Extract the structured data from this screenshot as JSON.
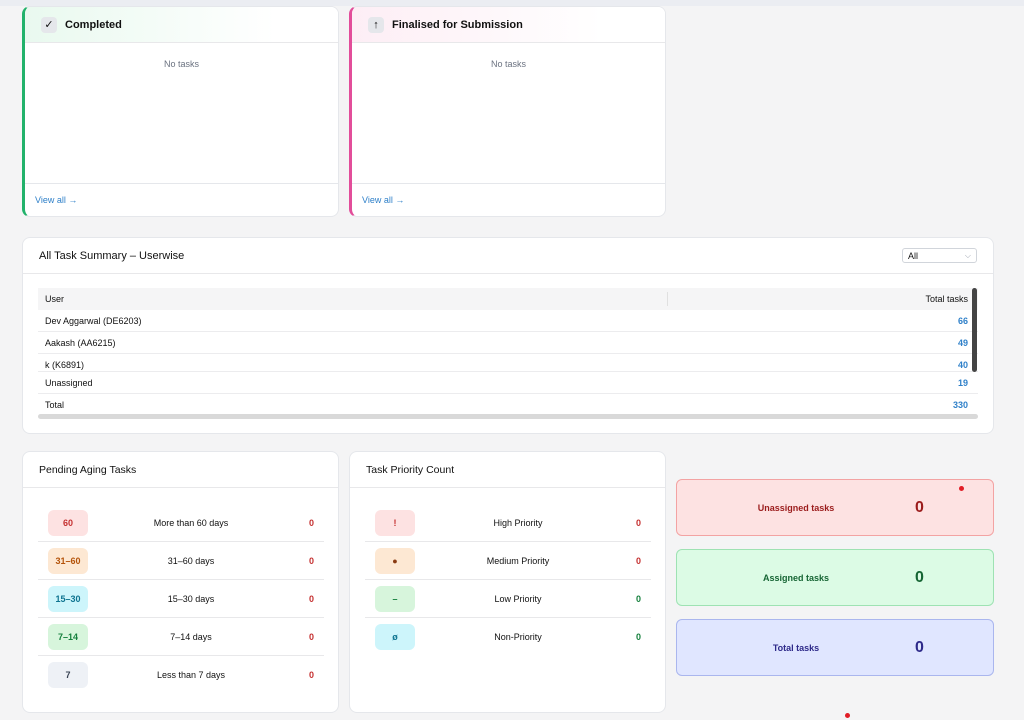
{
  "kanban": [
    {
      "title": "Completed",
      "icon": "checkmark-icon",
      "glyph": "✓",
      "empty": "No tasks",
      "link": "View all →"
    },
    {
      "title": "Finalised for Submission",
      "icon": "arrow-up-icon",
      "glyph": "↑",
      "empty": "No tasks",
      "link": "View all →"
    }
  ],
  "summary": {
    "title": "All Task Summary – Userwise",
    "filter": "All",
    "columns": [
      "User",
      "Total tasks"
    ],
    "rows": [
      {
        "user": "Dev Aggarwal (DE6203)",
        "total": "66"
      },
      {
        "user": "Aakash (AA6215)",
        "total": "49"
      },
      {
        "user": "k (K6891)",
        "total": "40"
      },
      {
        "user": "Unassigned",
        "total": "19"
      },
      {
        "user": "Total",
        "total": "330"
      }
    ]
  },
  "aging": {
    "title": "Pending Aging Tasks",
    "rows": [
      {
        "badge": "60",
        "label": "More than 60 days",
        "count": "0",
        "bg": "#fde2e2",
        "fg": "#c53030",
        "cnt": "#c53030"
      },
      {
        "badge": "31–60",
        "label": "31–60 days",
        "count": "0",
        "bg": "#fde8d3",
        "fg": "#b45309",
        "cnt": "#c53030"
      },
      {
        "badge": "15–30",
        "label": "15–30 days",
        "count": "0",
        "bg": "#cdf5fb",
        "fg": "#0e7490",
        "cnt": "#c53030"
      },
      {
        "badge": "7–14",
        "label": "7–14 days",
        "count": "0",
        "bg": "#d7f5dc",
        "fg": "#15803d",
        "cnt": "#c53030"
      },
      {
        "badge": "7",
        "label": "Less than 7 days",
        "count": "0",
        "bg": "#eef1f6",
        "fg": "#374151",
        "cnt": "#c53030"
      }
    ]
  },
  "priority": {
    "title": "Task Priority Count",
    "rows": [
      {
        "badge": "!",
        "label": "High Priority",
        "count": "0",
        "bg": "#fde2e2",
        "fg": "#c53030",
        "cnt": "#c53030"
      },
      {
        "badge": "●",
        "label": "Medium Priority",
        "count": "0",
        "bg": "#fde8d3",
        "fg": "#8a3b12",
        "cnt": "#c53030"
      },
      {
        "badge": "–",
        "label": "Low Priority",
        "count": "0",
        "bg": "#d7f5dc",
        "fg": "#15803d",
        "cnt": "#15803d"
      },
      {
        "badge": "ø",
        "label": "Non-Priority",
        "count": "0",
        "bg": "#cdf5fb",
        "fg": "#0e7490",
        "cnt": "#15803d"
      }
    ]
  },
  "stats": [
    {
      "label": "Unassigned tasks",
      "value": "0",
      "bg": "#fde2e2",
      "border": "#f3a3a3",
      "fg": "#9b1c1c"
    },
    {
      "label": "Assigned tasks",
      "value": "0",
      "bg": "#dcfbe5",
      "border": "#9ee2b3",
      "fg": "#166534"
    },
    {
      "label": "Total tasks",
      "value": "0",
      "bg": "#e0e6ff",
      "border": "#aab6ee",
      "fg": "#2e2a8a"
    }
  ]
}
